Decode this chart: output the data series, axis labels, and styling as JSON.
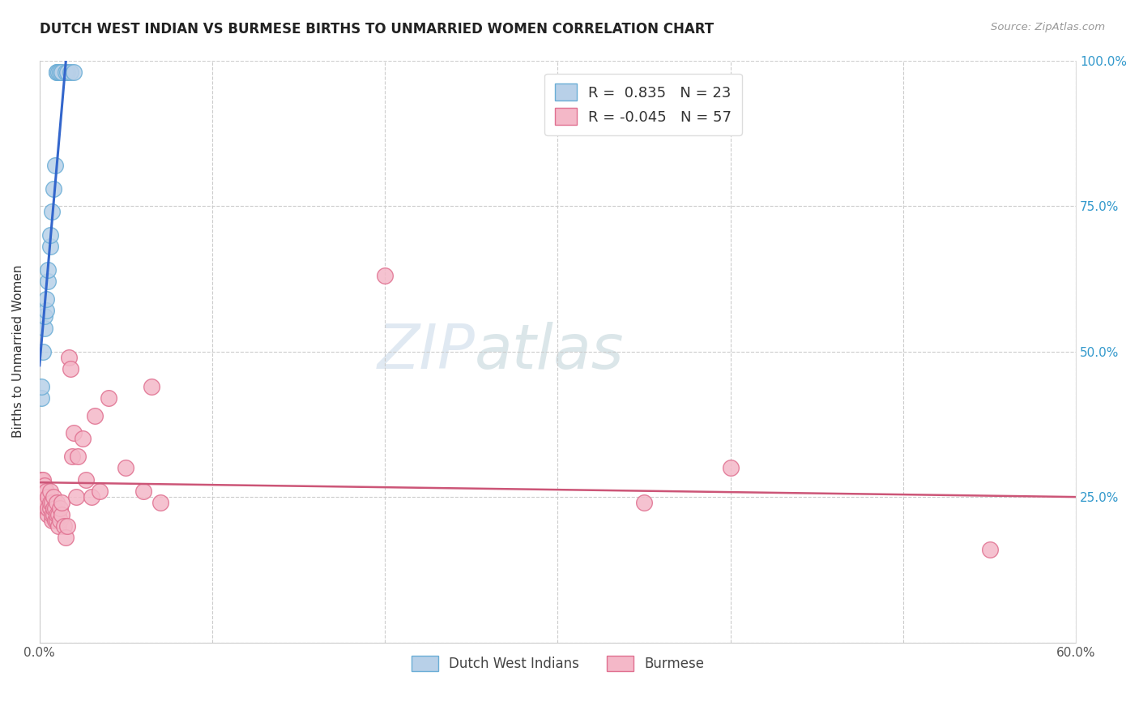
{
  "title": "DUTCH WEST INDIAN VS BURMESE BIRTHS TO UNMARRIED WOMEN CORRELATION CHART",
  "source": "Source: ZipAtlas.com",
  "ylabel": "Births to Unmarried Women",
  "xlim": [
    0.0,
    0.6
  ],
  "ylim": [
    0.0,
    1.0
  ],
  "blue_color": "#b8d0e8",
  "blue_edge_color": "#6baed6",
  "pink_color": "#f4b8c8",
  "pink_edge_color": "#e07090",
  "trend_blue": "#3366cc",
  "trend_pink": "#cc5577",
  "legend_r_blue": "0.835",
  "legend_n_blue": "23",
  "legend_r_pink": "-0.045",
  "legend_n_pink": "57",
  "blue_x": [
    0.001,
    0.001,
    0.002,
    0.003,
    0.003,
    0.004,
    0.004,
    0.005,
    0.005,
    0.006,
    0.006,
    0.007,
    0.008,
    0.009,
    0.01,
    0.01,
    0.011,
    0.012,
    0.013,
    0.015,
    0.016,
    0.018,
    0.02
  ],
  "blue_y": [
    0.42,
    0.44,
    0.5,
    0.54,
    0.56,
    0.57,
    0.59,
    0.62,
    0.64,
    0.68,
    0.7,
    0.74,
    0.78,
    0.82,
    0.98,
    0.98,
    0.98,
    0.98,
    0.98,
    0.98,
    0.98,
    0.98,
    0.98
  ],
  "pink_x": [
    0.001,
    0.001,
    0.002,
    0.002,
    0.002,
    0.003,
    0.003,
    0.003,
    0.004,
    0.004,
    0.004,
    0.005,
    0.005,
    0.005,
    0.006,
    0.006,
    0.006,
    0.007,
    0.007,
    0.007,
    0.008,
    0.008,
    0.008,
    0.009,
    0.009,
    0.01,
    0.01,
    0.01,
    0.011,
    0.011,
    0.012,
    0.012,
    0.013,
    0.013,
    0.014,
    0.015,
    0.016,
    0.017,
    0.018,
    0.019,
    0.02,
    0.021,
    0.022,
    0.025,
    0.027,
    0.03,
    0.032,
    0.035,
    0.04,
    0.05,
    0.06,
    0.065,
    0.07,
    0.2,
    0.35,
    0.4,
    0.55
  ],
  "pink_y": [
    0.27,
    0.28,
    0.26,
    0.27,
    0.28,
    0.24,
    0.25,
    0.27,
    0.23,
    0.24,
    0.26,
    0.22,
    0.23,
    0.25,
    0.23,
    0.24,
    0.26,
    0.21,
    0.22,
    0.24,
    0.22,
    0.23,
    0.25,
    0.21,
    0.23,
    0.21,
    0.22,
    0.24,
    0.2,
    0.22,
    0.21,
    0.23,
    0.22,
    0.24,
    0.2,
    0.18,
    0.2,
    0.49,
    0.47,
    0.32,
    0.36,
    0.25,
    0.32,
    0.35,
    0.28,
    0.25,
    0.39,
    0.26,
    0.42,
    0.3,
    0.26,
    0.44,
    0.24,
    0.63,
    0.24,
    0.3,
    0.16
  ]
}
